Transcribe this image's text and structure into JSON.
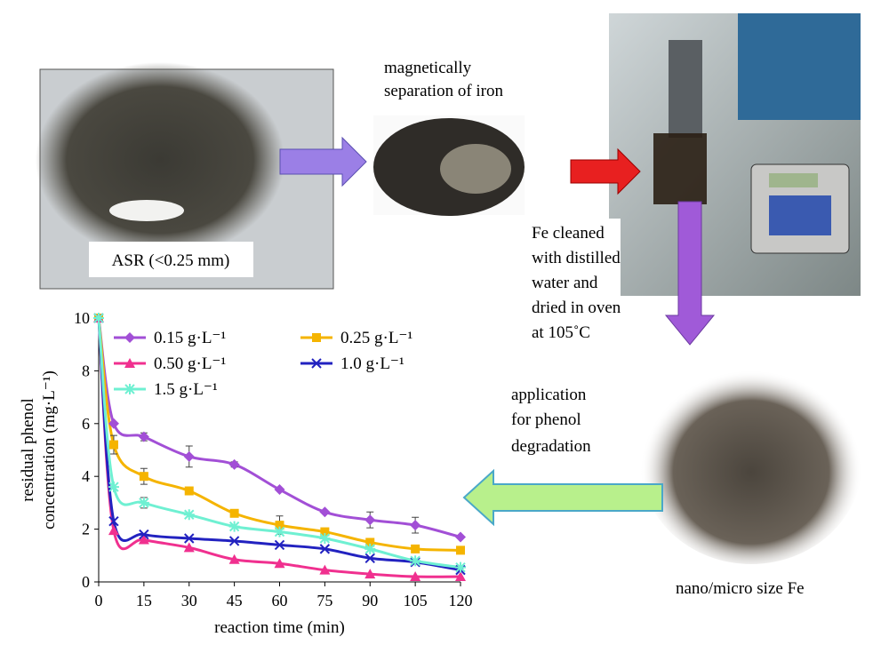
{
  "panels": {
    "asr_label": "ASR (<0.25 mm)",
    "separation_label": [
      "magnetically",
      "separation of iron"
    ],
    "cleaning_label": [
      "Fe cleaned",
      "with distilled",
      "water and",
      "dried in oven",
      "at 105˚C"
    ],
    "application_label": [
      "application",
      "for phenol",
      "degradation"
    ],
    "product_label": "nano/micro size Fe"
  },
  "chart_data": {
    "type": "line",
    "x_label": "reaction time (min)",
    "y_label": [
      "residual phenol",
      "concentration (mg·L⁻¹)"
    ],
    "x": [
      0,
      5,
      15,
      30,
      45,
      60,
      75,
      90,
      105,
      120
    ],
    "xlim": [
      0,
      120
    ],
    "xticks": [
      0,
      15,
      30,
      45,
      60,
      75,
      90,
      105,
      120
    ],
    "ylim": [
      0,
      10
    ],
    "yticks": [
      0,
      2,
      4,
      6,
      8,
      10
    ],
    "grid": false,
    "series": [
      {
        "name": "0.15 g·L⁻¹",
        "color": "#a24fd6",
        "marker": "diamond",
        "values": [
          10,
          6.0,
          5.5,
          4.75,
          4.45,
          3.5,
          2.65,
          2.35,
          2.15,
          1.7
        ],
        "errors": [
          null,
          null,
          0.15,
          0.4,
          0.1,
          null,
          null,
          0.3,
          0.3,
          null
        ]
      },
      {
        "name": "0.25 g·L⁻¹",
        "color": "#f5b400",
        "marker": "square",
        "values": [
          10,
          5.2,
          4.0,
          3.45,
          2.6,
          2.15,
          1.9,
          1.5,
          1.25,
          1.2
        ],
        "errors": [
          null,
          0.35,
          0.3,
          null,
          null,
          0.35,
          null,
          null,
          null,
          null
        ]
      },
      {
        "name": "0.50 g·L⁻¹",
        "color": "#f0308f",
        "marker": "triangle",
        "values": [
          10,
          1.95,
          1.6,
          1.3,
          0.85,
          0.7,
          0.45,
          0.3,
          0.2,
          0.2
        ],
        "errors": [
          null,
          null,
          null,
          null,
          null,
          null,
          null,
          null,
          null,
          null
        ]
      },
      {
        "name": "1.0 g·L⁻¹",
        "color": "#2222c0",
        "marker": "cross",
        "values": [
          10,
          2.3,
          1.8,
          1.65,
          1.55,
          1.4,
          1.25,
          0.9,
          0.75,
          0.45
        ],
        "errors": [
          null,
          null,
          null,
          null,
          null,
          null,
          null,
          null,
          null,
          null
        ]
      },
      {
        "name": "1.5 g·L⁻¹",
        "color": "#6ff0d2",
        "marker": "asterisk",
        "values": [
          10,
          3.6,
          3.0,
          2.55,
          2.1,
          1.9,
          1.65,
          1.25,
          0.8,
          0.55
        ],
        "errors": [
          null,
          null,
          0.2,
          null,
          null,
          null,
          null,
          null,
          null,
          null
        ]
      }
    ]
  }
}
